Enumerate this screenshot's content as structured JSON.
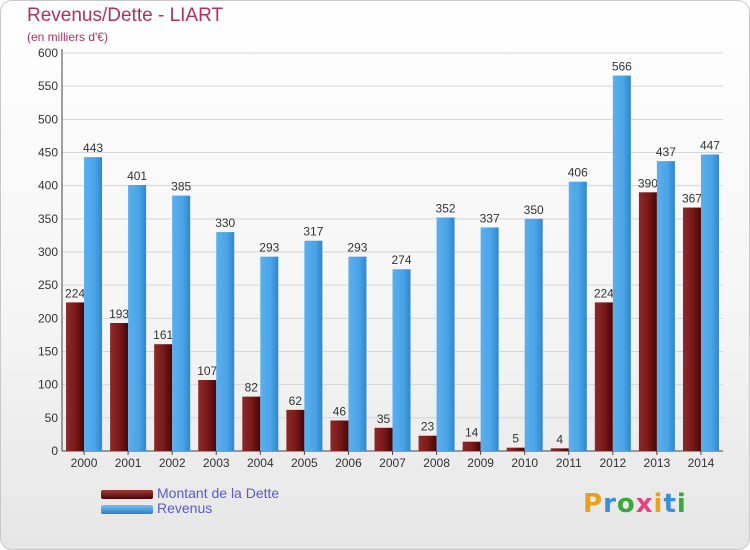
{
  "title": "Revenus/Dette - LIART",
  "subtitle": "(en milliers d'€)",
  "logo_text": "Proxiti",
  "colors": {
    "dette": "#7a1a1a",
    "revenus": "#4aa3e6",
    "title": "#b03060",
    "legend_text": "#5a5ad0"
  },
  "legend": [
    {
      "label": "Montant de la Dette",
      "color": "#7a1a1a"
    },
    {
      "label": "Revenus",
      "color": "#4aa3e6"
    }
  ],
  "chart_data": {
    "type": "bar",
    "categories": [
      "2000",
      "2001",
      "2002",
      "2003",
      "2004",
      "2005",
      "2006",
      "2007",
      "2008",
      "2009",
      "2010",
      "2011",
      "2012",
      "2013",
      "2014"
    ],
    "series": [
      {
        "name": "Montant de la Dette",
        "values": [
          224,
          193,
          161,
          107,
          82,
          62,
          46,
          35,
          23,
          14,
          5,
          4,
          224,
          390,
          367
        ]
      },
      {
        "name": "Revenus",
        "values": [
          443,
          401,
          385,
          330,
          293,
          317,
          293,
          274,
          352,
          337,
          350,
          406,
          566,
          437,
          447
        ]
      }
    ],
    "ylim": [
      0,
      600
    ],
    "yticks": [
      0,
      50,
      100,
      150,
      200,
      250,
      300,
      350,
      400,
      450,
      500,
      550,
      600
    ],
    "grid": true,
    "legend_position": "bottom-left"
  }
}
